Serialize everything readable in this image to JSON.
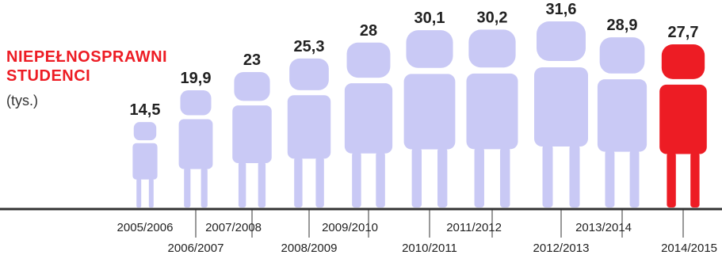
{
  "chart_data": {
    "type": "bar",
    "title": "NIEPEŁNOSPRAWNI STUDENCI",
    "unit": "(tys.)",
    "categories": [
      "2005/2006",
      "2006/2007",
      "2007/2008",
      "2008/2009",
      "2009/2010",
      "2010/2011",
      "2011/2012",
      "2012/2013",
      "2013/2014",
      "2014/2015"
    ],
    "value_labels": [
      "14,5",
      "19,9",
      "23",
      "25,3",
      "28",
      "30,1",
      "30,2",
      "31,6",
      "28,9",
      "27,7"
    ],
    "values": [
      14.5,
      19.9,
      23,
      25.3,
      28,
      30.1,
      30.2,
      31.6,
      28.9,
      27.7
    ],
    "highlight_index": 9,
    "colors": {
      "normal": "#c9c9f5",
      "highlight": "#ed1c24",
      "axis": "#333333"
    }
  }
}
